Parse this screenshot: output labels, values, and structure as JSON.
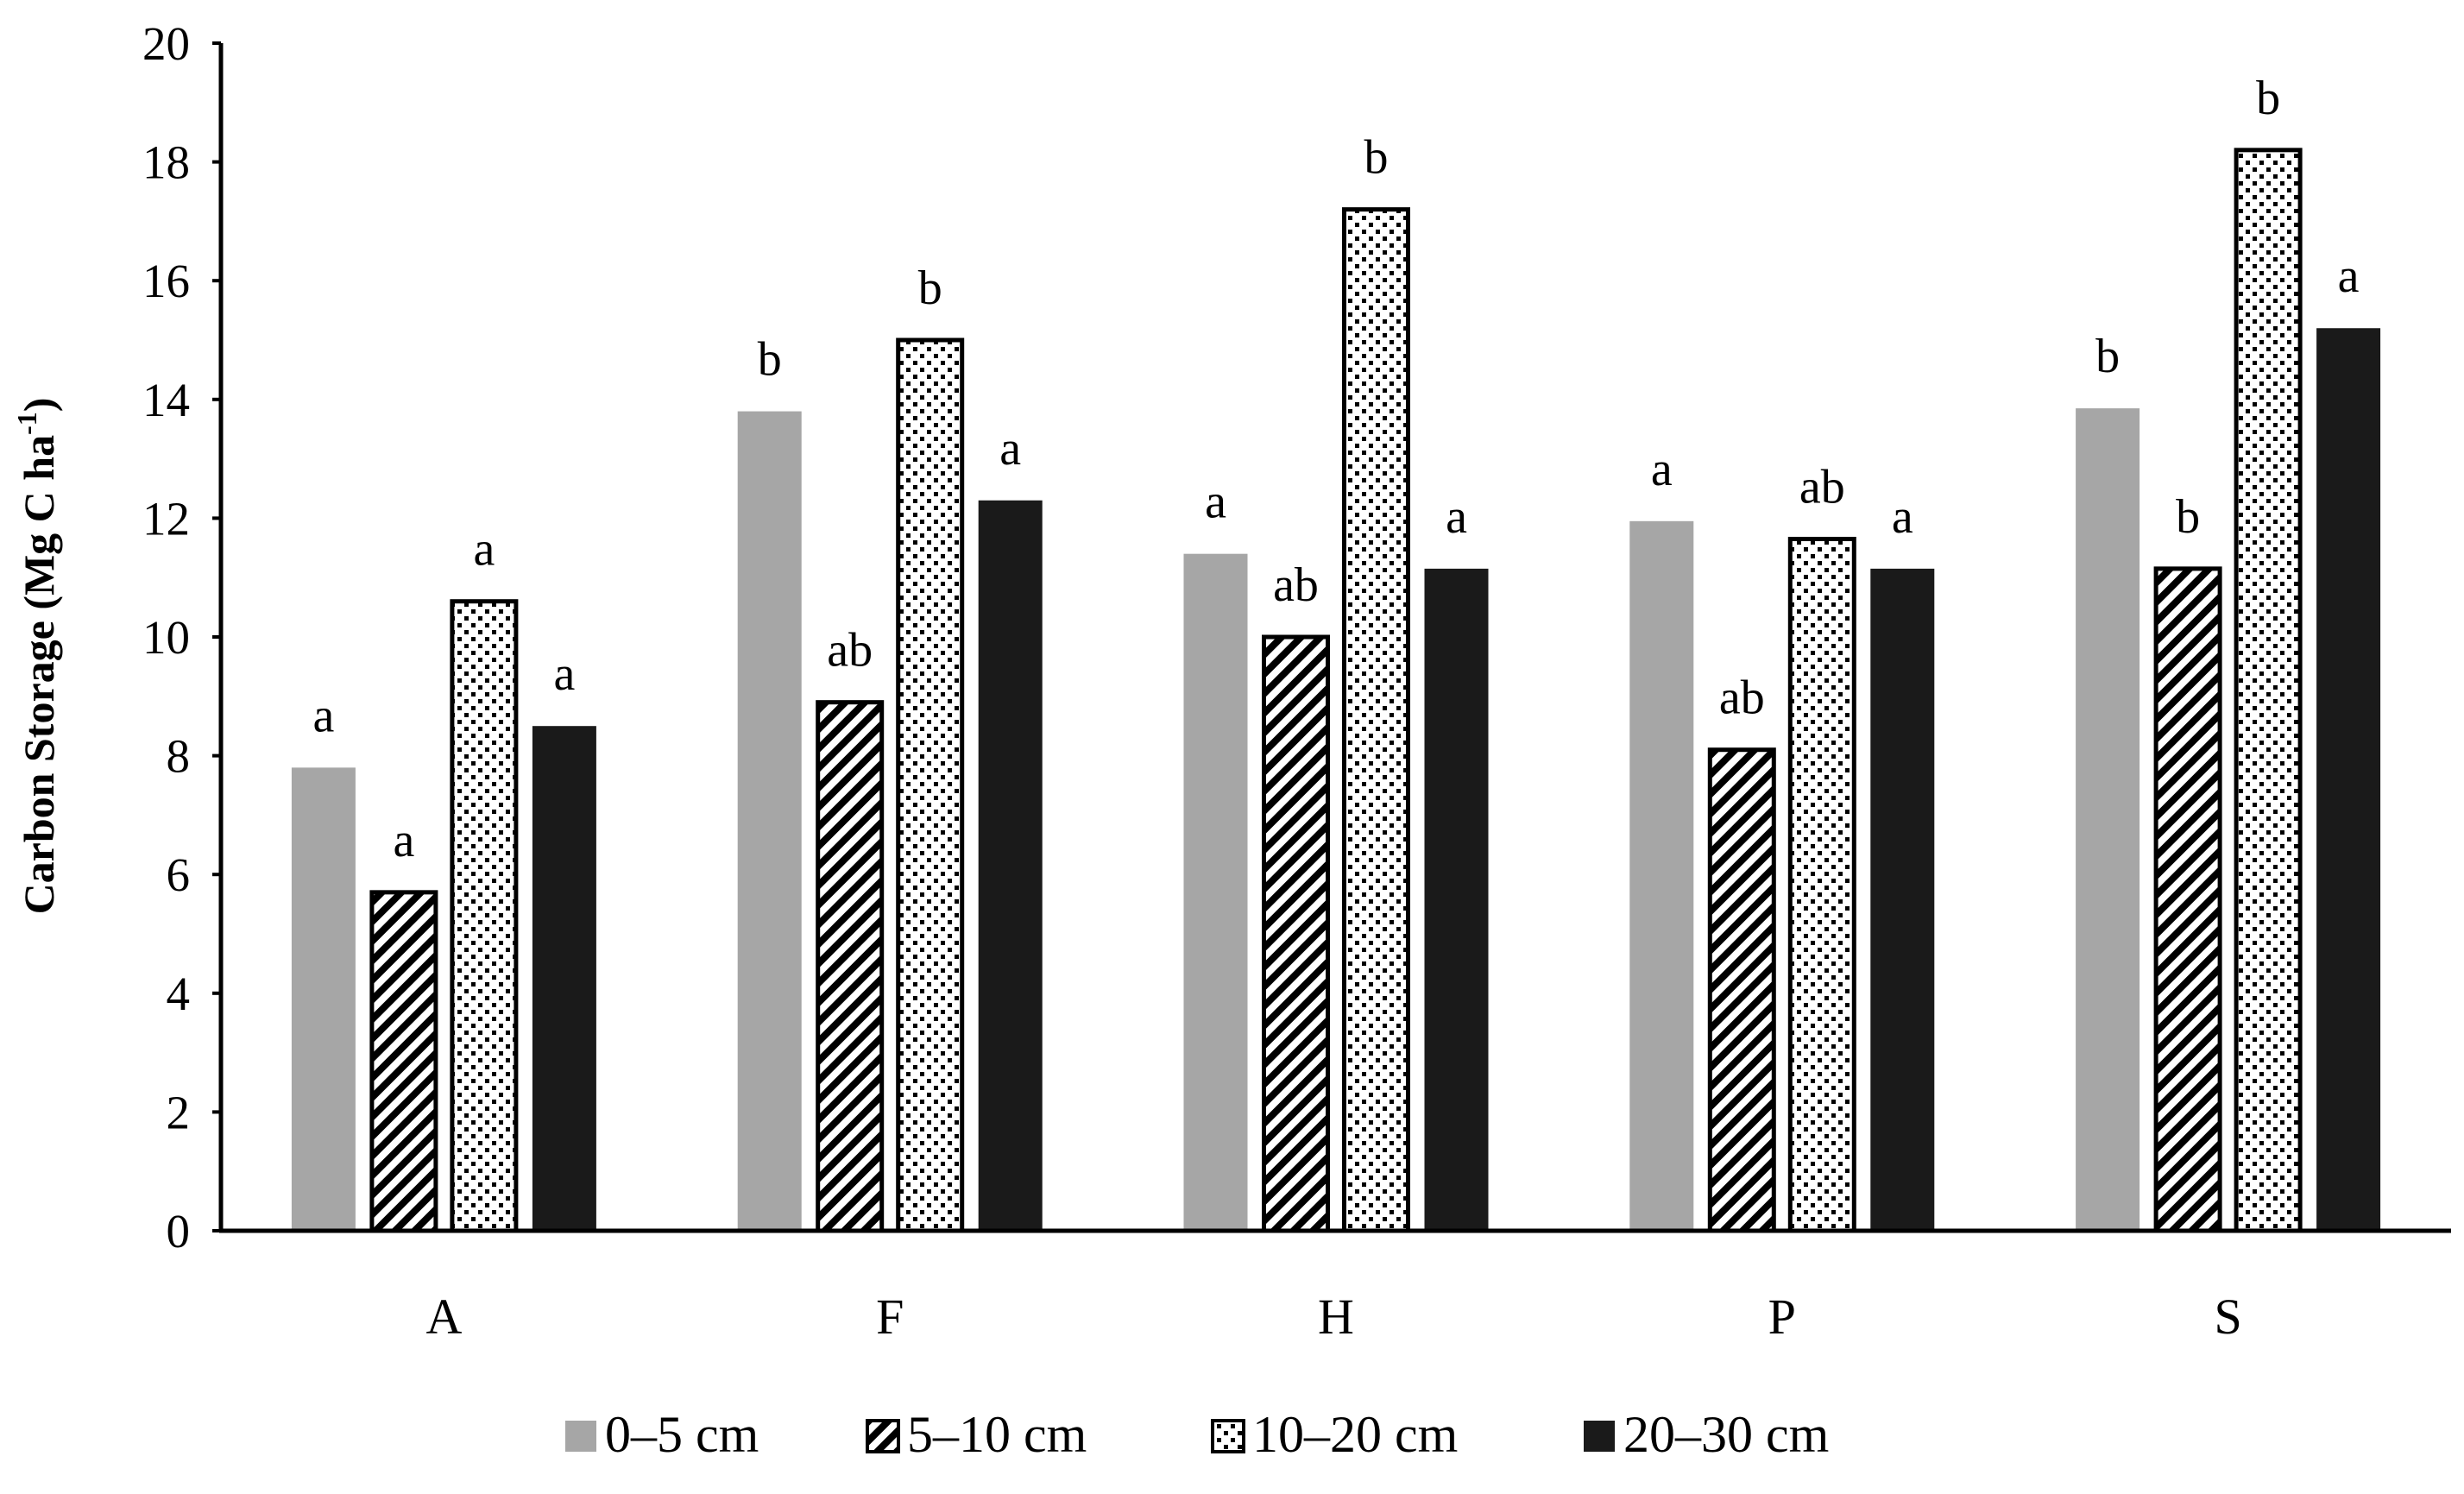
{
  "chart_data": {
    "type": "bar",
    "title": "",
    "xlabel": "",
    "ylabel": "Carbon Storage (Mg C ha",
    "ylabel_sup": "-1",
    "ylabel_close": ")",
    "ylim": [
      0,
      20
    ],
    "yticks": [
      0,
      2,
      4,
      6,
      8,
      10,
      12,
      14,
      16,
      18,
      20
    ],
    "categories": [
      "A",
      "F",
      "H",
      "P",
      "S"
    ],
    "legend_position": "bottom",
    "series": [
      {
        "name": "0–5 cm",
        "pattern": "solid-gray",
        "color": "#a6a6a6",
        "values": [
          7.8,
          13.8,
          11.4,
          11.95,
          13.85
        ],
        "labels": [
          "a",
          "b",
          "a",
          "a",
          "b"
        ]
      },
      {
        "name": "5–10 cm",
        "pattern": "diagonal-stripes",
        "color": "#000000",
        "values": [
          5.7,
          8.9,
          10.0,
          8.1,
          11.15
        ],
        "labels": [
          "a",
          "ab",
          "ab",
          "ab",
          "b"
        ]
      },
      {
        "name": "10–20 cm",
        "pattern": "dots",
        "color": "#000000",
        "values": [
          10.6,
          15.0,
          17.2,
          11.65,
          18.2
        ],
        "labels": [
          "a",
          "b",
          "b",
          "ab",
          "b"
        ]
      },
      {
        "name": "20–30 cm",
        "pattern": "solid-black",
        "color": "#1a1a1a",
        "values": [
          8.5,
          12.3,
          11.15,
          11.15,
          15.2
        ],
        "labels": [
          "a",
          "a",
          "a",
          "a",
          "a"
        ]
      }
    ]
  }
}
